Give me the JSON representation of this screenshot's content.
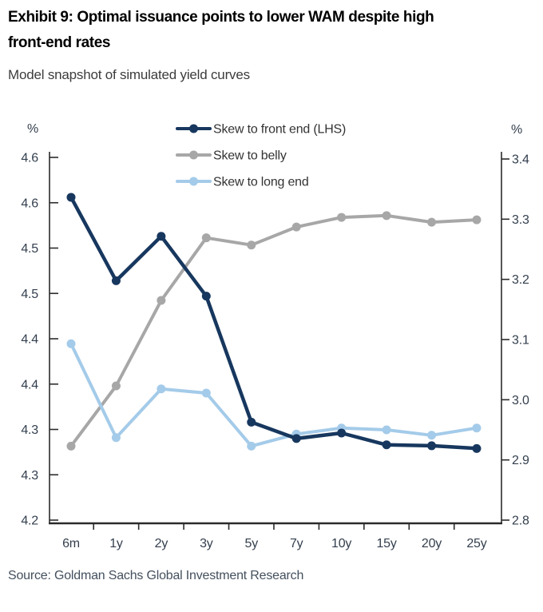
{
  "header": {
    "title": "Exhibit 9: Optimal issuance points to lower WAM despite high front-end rates",
    "title_line1": "Exhibit 9: Optimal issuance points to lower WAM despite high",
    "title_line2": "front-end rates",
    "subtitle": "Model snapshot of simulated yield curves"
  },
  "footer": {
    "source": "Source: Goldman Sachs Global Investment Research"
  },
  "colors": {
    "navy": "#17375e",
    "gray": "#a7a7a7",
    "light_blue": "#a4cbe9",
    "axis_line": "#2b2b2b",
    "axis_text": "#333f4e",
    "legend_text": "#333333",
    "title": "#000000",
    "subtitle": "#3c3c3c",
    "source": "#44505e"
  },
  "chart_data": {
    "type": "line",
    "title": "Model snapshot of simulated yield curves",
    "categories": [
      "6m",
      "1y",
      "2y",
      "3y",
      "5y",
      "7y",
      "10y",
      "15y",
      "20y",
      "25y"
    ],
    "series": [
      {
        "name": "Skew to front end (LHS)",
        "axis": "left",
        "color_key": "navy",
        "values": [
          4.556,
          4.464,
          4.513,
          4.447,
          4.308,
          4.29,
          4.296,
          4.283,
          4.282,
          4.279
        ]
      },
      {
        "name": "Skew to belly",
        "axis": "right",
        "color_key": "gray",
        "values": [
          2.923,
          3.023,
          3.165,
          3.269,
          3.257,
          3.287,
          3.303,
          3.306,
          3.295,
          3.299
        ]
      },
      {
        "name": "Skew to long end",
        "axis": "right",
        "color_key": "light_blue",
        "values": [
          3.093,
          2.937,
          3.018,
          3.011,
          2.923,
          2.943,
          2.953,
          2.95,
          2.941,
          2.953
        ]
      }
    ],
    "left_axis": {
      "unit": "%",
      "min": 4.2,
      "max": 4.6,
      "step": 0.05,
      "tick_labels": [
        "4.6",
        "4.6",
        "4.5",
        "4.5",
        "4.4",
        "4.4",
        "4.3",
        "4.3",
        "4.2"
      ]
    },
    "right_axis": {
      "unit": "%",
      "min": 2.8,
      "max": 3.4,
      "step": 0.1,
      "tick_labels": [
        "3.4",
        "3.3",
        "3.2",
        "3.1",
        "3.0",
        "2.9",
        "2.8"
      ]
    },
    "legend_position": "top-center",
    "grid": false
  }
}
